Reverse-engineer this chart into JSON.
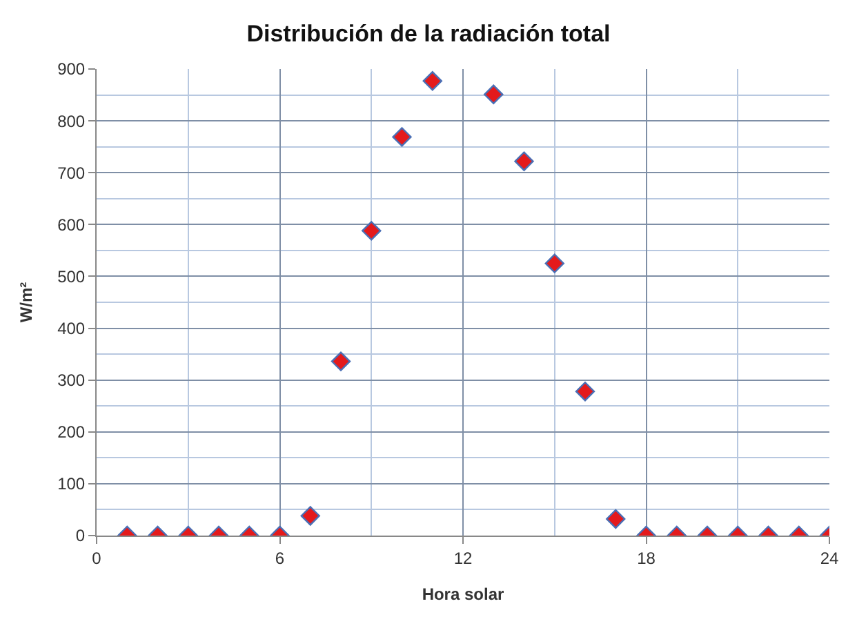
{
  "chart_data": {
    "type": "scatter",
    "title": "Distribución de la radiación total",
    "xlabel": "Hora solar",
    "ylabel": "W/m²",
    "x": [
      1,
      2,
      3,
      4,
      5,
      6,
      7,
      8,
      9,
      10,
      11,
      12,
      13,
      14,
      15,
      16,
      17,
      18,
      19,
      20,
      21,
      22,
      23,
      24
    ],
    "series": [
      {
        "color": "#e41a1c",
        "values": [
          0,
          0,
          0,
          0,
          0,
          0,
          38,
          336,
          588,
          769,
          877,
          null,
          851,
          722,
          525,
          278,
          32,
          0,
          0,
          0,
          0,
          0,
          0,
          0
        ]
      }
    ],
    "xlim": [
      0,
      24
    ],
    "xticks": [
      0,
      6,
      12,
      18,
      24
    ],
    "ylim": [
      0,
      900
    ],
    "yticks": [
      0,
      100,
      200,
      300,
      400,
      500,
      600,
      700,
      800,
      900
    ],
    "grid": true,
    "marker": "diamond"
  }
}
